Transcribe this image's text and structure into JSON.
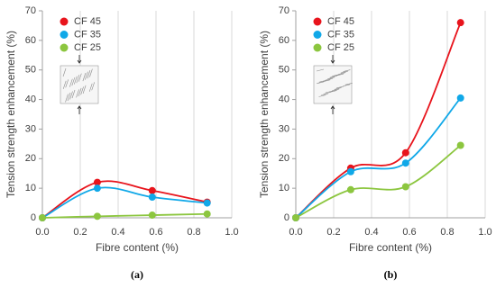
{
  "chart_data": [
    {
      "type": "line",
      "caption": "(a)",
      "x_label": "Fibre content (%)",
      "y_label": "Tension strength enhancement (%)",
      "x": [
        0,
        0.29,
        0.58,
        0.87
      ],
      "series": [
        {
          "name": "CF 45",
          "color": "#e8141c",
          "values": [
            0,
            12,
            9.2,
            5.3
          ]
        },
        {
          "name": "CF 35",
          "color": "#10a8e8",
          "values": [
            0,
            10,
            7,
            5
          ]
        },
        {
          "name": "CF 25",
          "color": "#8cc63f",
          "values": [
            0,
            0.5,
            0.9,
            1.3
          ]
        }
      ],
      "xlim": [
        0,
        1
      ],
      "xticks": [
        {
          "value": 0,
          "label": "0.0"
        },
        0.2,
        0.4,
        0.6,
        0.8,
        {
          "value": 1,
          "label": "1.0"
        }
      ],
      "ylim": [
        0,
        70
      ],
      "yticks": [
        0,
        10,
        20,
        30,
        40,
        50,
        60,
        70
      ],
      "grid": "x"
    },
    {
      "type": "line",
      "caption": "(b)",
      "x_label": "Fibre content (%)",
      "y_label": "Tension strength enhancement (%)",
      "x": [
        0,
        0.29,
        0.58,
        0.87
      ],
      "series": [
        {
          "name": "CF 45",
          "color": "#e8141c",
          "values": [
            0,
            16.8,
            22,
            66
          ]
        },
        {
          "name": "CF 35",
          "color": "#10a8e8",
          "values": [
            0,
            15.6,
            18.5,
            40.5
          ]
        },
        {
          "name": "CF 25",
          "color": "#8cc63f",
          "values": [
            0,
            9.5,
            10.5,
            24.5
          ]
        }
      ],
      "xlim": [
        0,
        1
      ],
      "xticks": [
        {
          "value": 0,
          "label": "0.0"
        },
        0.2,
        0.4,
        0.6,
        0.8,
        {
          "value": 1,
          "label": "1.0"
        }
      ],
      "ylim": [
        0,
        70
      ],
      "yticks": [
        0,
        10,
        20,
        30,
        40,
        50,
        60,
        70
      ],
      "grid": "x"
    }
  ]
}
